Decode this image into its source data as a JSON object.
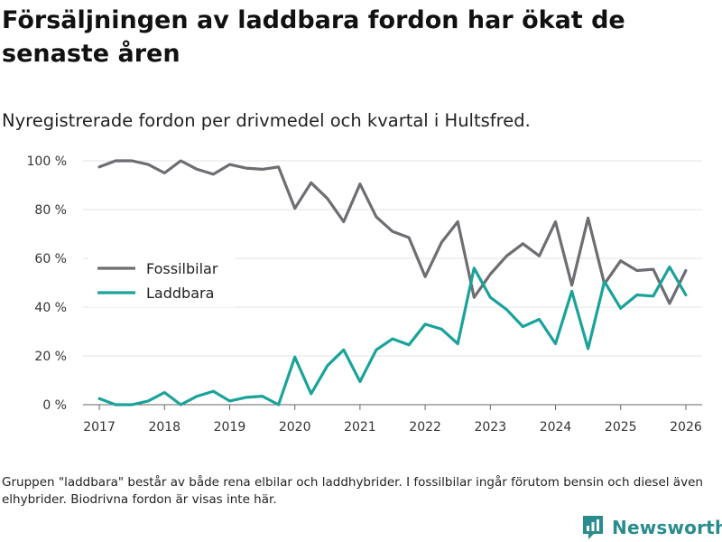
{
  "title": "Försäljningen av laddbara fordon har ökat de senaste åren",
  "subtitle": "Nyregistrerade fordon per drivmedel och kvartal i Hultsfred.",
  "note": "Gruppen \"laddbara\" består av både rena elbilar och laddhybrider. I fossilbilar ingår förutom bensin och diesel även elhybrider. Biodrivna fordon är visas inte här.",
  "brand": {
    "name": "Newsworthy"
  },
  "chart_data": {
    "type": "line",
    "title": "Försäljningen av laddbara fordon har ökat de senaste åren",
    "subtitle": "Nyregistrerade fordon per drivmedel och kvartal i Hultsfred.",
    "xlabel": "",
    "ylabel": "",
    "xlim": [
      2016.75,
      2026.25
    ],
    "ylim": [
      0,
      100
    ],
    "x_ticks": [
      2017,
      2018,
      2019,
      2020,
      2021,
      2022,
      2023,
      2024,
      2025,
      2026
    ],
    "x_tick_labels": [
      "2017",
      "2018",
      "2019",
      "2020",
      "2021",
      "2022",
      "2023",
      "2024",
      "2025",
      "2026"
    ],
    "y_ticks": [
      0,
      20,
      40,
      60,
      80,
      100
    ],
    "y_tick_labels": [
      "0 %",
      "20 %",
      "40 %",
      "60 %",
      "80 %",
      "100 %"
    ],
    "grid": true,
    "legend_position": "left-middle",
    "x": [
      2017.0,
      2017.25,
      2017.5,
      2017.75,
      2018.0,
      2018.25,
      2018.5,
      2018.75,
      2019.0,
      2019.25,
      2019.5,
      2019.75,
      2020.0,
      2020.25,
      2020.5,
      2020.75,
      2021.0,
      2021.25,
      2021.5,
      2021.75,
      2022.0,
      2022.25,
      2022.5,
      2022.75,
      2023.0,
      2023.25,
      2023.5,
      2023.75,
      2024.0,
      2024.25,
      2024.5,
      2024.75,
      2025.0,
      2025.25,
      2025.5,
      2025.75,
      2026.0
    ],
    "series": [
      {
        "name": "Fossilbilar",
        "color": "#6e6d72",
        "values": [
          97.5,
          100,
          100,
          98.5,
          95,
          100,
          96.5,
          94.5,
          98.5,
          97,
          96.5,
          97.5,
          80.5,
          91,
          84.5,
          75,
          90.5,
          77,
          71,
          68.5,
          52.5,
          66.5,
          75,
          44,
          53.5,
          61,
          66,
          61,
          75,
          49,
          76.5,
          49.5,
          59,
          55,
          55.5,
          41.5,
          55
        ]
      },
      {
        "name": "Laddbara",
        "color": "#1aa39a",
        "values": [
          2.5,
          0,
          0,
          1.5,
          5,
          0,
          3.5,
          5.5,
          1.5,
          3,
          3.5,
          0,
          19.5,
          4.5,
          16,
          22.5,
          9.5,
          22.5,
          27,
          24.5,
          33,
          31,
          25,
          56,
          44,
          39,
          32,
          35,
          25,
          46.5,
          23,
          50.5,
          39.5,
          45,
          44.5,
          56.5,
          45
        ]
      }
    ]
  }
}
